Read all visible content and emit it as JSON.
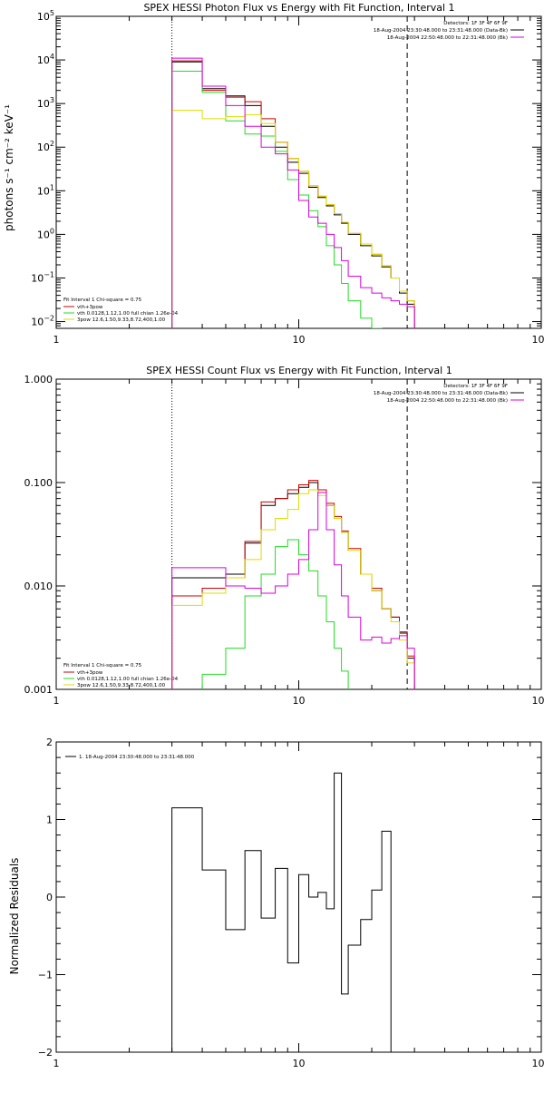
{
  "colors": {
    "black": "#000000",
    "red": "#cc0000",
    "green": "#22dd22",
    "yellow": "#dddd00",
    "magenta": "#dd00dd"
  },
  "chart_data": [
    {
      "type": "line",
      "title": "SPEX HESSI Photon Flux vs Energy with Fit Function, Interval 1",
      "xlabel": "",
      "ylabel": "photons s⁻¹ cm⁻² keV⁻¹",
      "xscale": "log",
      "yscale": "log",
      "xlim": [
        1,
        100
      ],
      "ylim": [
        0.007,
        100000
      ],
      "x_ticks": [
        1,
        10,
        100
      ],
      "x_tick_labels": [
        "1",
        "10",
        "100"
      ],
      "y_ticks": [
        0.01,
        0.1,
        1,
        10,
        100,
        1000,
        10000,
        100000
      ],
      "y_tick_labels": [
        {
          "base": "10",
          "exp": "−2"
        },
        {
          "base": "10",
          "exp": "−1"
        },
        {
          "base": "10",
          "exp": "0"
        },
        {
          "base": "10",
          "exp": "1"
        },
        {
          "base": "10",
          "exp": "2"
        },
        {
          "base": "10",
          "exp": "3"
        },
        {
          "base": "10",
          "exp": "4"
        },
        {
          "base": "10",
          "exp": "5"
        }
      ],
      "vlines": [
        {
          "x": 3,
          "style": "dotted",
          "color": "#000000"
        },
        {
          "x": 28,
          "style": "dashed",
          "color": "#000000"
        }
      ],
      "bin_edges": [
        3,
        4,
        5,
        6,
        7,
        8,
        9,
        10,
        11,
        12,
        13,
        14,
        15,
        16,
        18,
        20,
        22,
        24,
        26,
        28,
        30
      ],
      "series": [
        {
          "name": "",
          "color": "#000000",
          "values": [
            9000,
            2200,
            1500,
            900,
            300,
            100,
            45,
            25,
            12,
            7,
            4.5,
            2.8,
            1.8,
            1.0,
            0.55,
            0.32,
            0.18,
            0.1,
            0.045,
            0.025,
            null
          ]
        },
        {
          "name": "vth+3pow",
          "color": "#cc0000",
          "values": [
            9500,
            2000,
            1400,
            1100,
            450,
            130,
            55,
            28,
            13,
            7.5,
            4.8,
            3.0,
            1.9,
            1.05,
            0.6,
            0.35,
            0.19,
            0.1,
            0.05,
            0.03,
            null
          ]
        },
        {
          "name": "vth 0.0128,1.12,1.00  full chian 1.26e-04",
          "color": "#22dd22",
          "values": [
            5500,
            1800,
            400,
            200,
            180,
            80,
            18,
            8,
            3.5,
            1.5,
            0.55,
            0.2,
            0.075,
            0.03,
            0.012,
            0.007,
            null,
            null,
            null,
            null,
            null
          ]
        },
        {
          "name": "3pow 12.6,1.50,9.33,8.72,400,1.00",
          "color": "#dddd00",
          "values": [
            700,
            450,
            500,
            550,
            350,
            130,
            55,
            28,
            13,
            7.5,
            4.8,
            3.0,
            1.9,
            1.05,
            0.6,
            0.35,
            0.19,
            0.1,
            0.05,
            0.03,
            0.008
          ]
        },
        {
          "name": "",
          "color": "#dd00dd",
          "values": [
            11000,
            2500,
            900,
            300,
            100,
            70,
            30,
            6,
            2.5,
            1.8,
            1.0,
            0.5,
            0.25,
            0.11,
            0.06,
            0.045,
            0.035,
            0.03,
            0.025,
            0.022,
            null
          ]
        }
      ],
      "legend_header": {
        "label": "Detectors:",
        "value": "1F 3F 4F 6F 9F"
      },
      "legend_entries": [
        {
          "text": "18-Aug-2004 23:30:48.000 to 23:31:48.000 (Data-Bk)",
          "color": "#000000"
        },
        {
          "text": "18-Aug-2004 22:50:48.000 to 22:31:48.000 (Bk)",
          "color": "#dd00dd"
        }
      ],
      "fit_legend_title": "Fit Interval 1   Chi-square = 0.75",
      "fit_legend_entries": [
        {
          "text": "vth+3pow",
          "color": "#cc0000"
        },
        {
          "text": "vth 0.0128,1.12,1.00  full chian 1.26e-04",
          "color": "#22dd22"
        },
        {
          "text": "3pow 12.6,1.50,9.33,8.72,400,1.00",
          "color": "#dddd00"
        }
      ]
    },
    {
      "type": "line",
      "title": "SPEX HESSI Count Flux vs Energy with Fit Function, Interval 1",
      "xlabel": "",
      "ylabel": "",
      "xscale": "log",
      "yscale": "log",
      "xlim": [
        1,
        100
      ],
      "ylim": [
        0.001,
        1.0
      ],
      "x_ticks": [
        1,
        10,
        100
      ],
      "x_tick_labels": [
        "1",
        "10",
        "100"
      ],
      "y_ticks": [
        0.001,
        0.01,
        0.1,
        1.0
      ],
      "y_tick_labels": [
        "0.001",
        "0.010",
        "0.100",
        "1.000"
      ],
      "vlines": [
        {
          "x": 3,
          "style": "dotted",
          "color": "#000000"
        },
        {
          "x": 28,
          "style": "dashed",
          "color": "#000000"
        }
      ],
      "bin_edges": [
        3,
        4,
        5,
        6,
        7,
        8,
        9,
        10,
        11,
        12,
        13,
        14,
        15,
        16,
        18,
        20,
        22,
        24,
        26,
        28,
        30
      ],
      "series": [
        {
          "name": "",
          "color": "#000000",
          "values": [
            0.012,
            0.012,
            0.013,
            0.026,
            0.06,
            0.07,
            0.078,
            0.09,
            0.1,
            0.08,
            0.06,
            0.045,
            0.033,
            0.022,
            0.013,
            0.009,
            0.006,
            0.005,
            0.0035,
            0.002,
            null
          ]
        },
        {
          "name": "vth+3pow",
          "color": "#cc0000",
          "values": [
            0.008,
            0.0095,
            0.012,
            0.027,
            0.065,
            0.07,
            0.085,
            0.095,
            0.105,
            0.085,
            0.063,
            0.047,
            0.034,
            0.023,
            0.013,
            0.0095,
            0.006,
            0.005,
            0.0036,
            0.0021,
            null
          ]
        },
        {
          "name": "vth 0.0128,1.12,1.00  full chian 1.26e-04",
          "color": "#22dd22",
          "values": [
            0.0007,
            0.0014,
            0.0025,
            0.008,
            0.013,
            0.024,
            0.028,
            0.02,
            0.014,
            0.008,
            0.0045,
            0.0025,
            0.0015,
            0.0008,
            null,
            null,
            null,
            null,
            null,
            null,
            null
          ]
        },
        {
          "name": "3pow 12.6,1.50,9.33,8.72,400,1.00",
          "color": "#dddd00",
          "values": [
            0.0065,
            0.0085,
            0.012,
            0.018,
            0.035,
            0.045,
            0.055,
            0.078,
            0.085,
            0.075,
            0.06,
            0.045,
            0.033,
            0.022,
            0.013,
            0.009,
            0.006,
            0.0045,
            0.003,
            0.0018,
            0.0012
          ]
        },
        {
          "name": "",
          "color": "#dd00dd",
          "values": [
            0.015,
            0.015,
            0.01,
            0.0095,
            0.0085,
            0.01,
            0.013,
            0.018,
            0.035,
            0.08,
            0.035,
            0.016,
            0.008,
            0.005,
            0.003,
            0.0032,
            0.0028,
            0.0031,
            0.0033,
            0.0025,
            null
          ]
        }
      ],
      "legend_header": {
        "label": "Detectors:",
        "value": "1F 3F 4F 6F 9F"
      },
      "legend_entries": [
        {
          "text": "18-Aug-2004 23:30:48.000 to 23:31:48.000 (Data-Bk)",
          "color": "#000000"
        },
        {
          "text": "18-Aug-2004 22:50:48.000 to 22:31:48.000 (Bk)",
          "color": "#dd00dd"
        }
      ],
      "fit_legend_title": "Fit Interval 1   Chi-square = 0.75",
      "fit_legend_entries": [
        {
          "text": "vth+3pow",
          "color": "#cc0000"
        },
        {
          "text": "vth 0.0128,1.12,1.00  full chian 1.26e-04",
          "color": "#22dd22"
        },
        {
          "text": "3pow 12.6,1.50,9.33,8.72,400,1.00",
          "color": "#dddd00"
        }
      ]
    },
    {
      "type": "line",
      "title": "",
      "xlabel": "",
      "ylabel": "Normalized Residuals",
      "xscale": "log",
      "yscale": "linear",
      "xlim": [
        1,
        100
      ],
      "ylim": [
        -2,
        2
      ],
      "x_ticks": [
        1,
        10,
        100
      ],
      "x_tick_labels": [
        "1",
        "10",
        "100"
      ],
      "y_ticks": [
        -2,
        -1,
        0,
        1,
        2
      ],
      "y_tick_labels": [
        "−2",
        "−1",
        "0",
        "1",
        "2"
      ],
      "bin_edges": [
        3,
        4,
        5,
        6,
        7,
        8,
        9,
        10,
        11,
        12,
        13,
        14,
        15,
        16,
        18,
        20,
        22,
        24,
        26,
        28
      ],
      "series": [
        {
          "name": "1. 18-Aug-2004 23:30:48.000 to 23:31:48.000",
          "color": "#000000",
          "values": [
            1.15,
            0.35,
            -0.42,
            0.6,
            -0.27,
            0.37,
            -0.85,
            0.29,
            0.0,
            0.06,
            -0.15,
            1.6,
            -1.25,
            -0.62,
            -0.29,
            0.09,
            0.85,
            null,
            null
          ]
        }
      ],
      "residual_drop_from": -2.0,
      "legend_entries": [
        {
          "text": "1. 18-Aug-2004 23:30:48.000 to 23:31:48.000",
          "color": "#000000"
        }
      ]
    }
  ]
}
